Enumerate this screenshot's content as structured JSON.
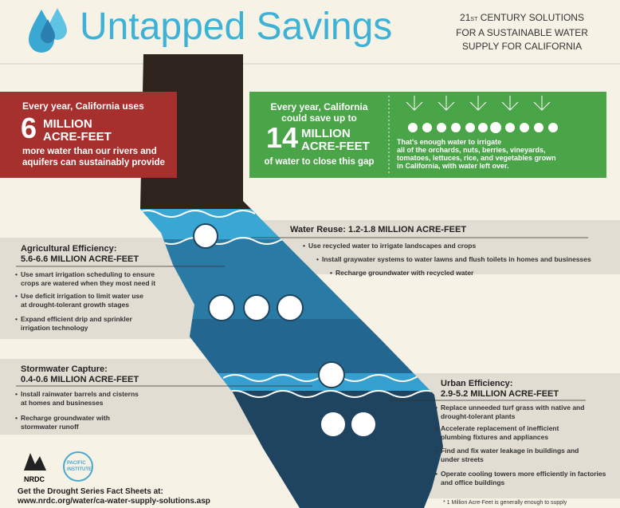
{
  "header": {
    "title": "Untapped Savings",
    "subtitle": {
      "number": "21",
      "suffix": "ST",
      "line1": "CENTURY SOLUTIONS",
      "line2": "FOR A SUSTAINABLE WATER",
      "line3": "SUPPLY FOR CALIFORNIA"
    }
  },
  "gap": {
    "intro": "Every year, California uses",
    "number": "6",
    "unit1": "MILLION",
    "unit2": "ACRE-FEET",
    "lines": [
      "more water than our rivers and",
      "aquifers can sustainably provide"
    ]
  },
  "savings": {
    "intro": [
      "Every year, California",
      "could save up to"
    ],
    "number": "14",
    "unit1": "MILLION",
    "unit2": "ACRE-FEET",
    "outro": "of water to close this gap",
    "note": [
      "That's enough water to irrigate",
      "all of the orchards, nuts, berries, vineyards,",
      "tomatoes, lettuces, rice, and vegetables grown",
      "in California, with water left over."
    ]
  },
  "water_reuse": {
    "title": "Water Reuse: 1.2-1.8 MILLION ACRE-FEET",
    "items": [
      "Use recycled water to irrigate landscapes and crops",
      "Install graywater systems to water lawns and flush toilets in homes and businesses",
      "Recharge groundwater with recycled water"
    ]
  },
  "agricultural": {
    "title": "Agricultural Efficiency:",
    "amount": "5.6-6.6 MILLION ACRE-FEET",
    "items": [
      [
        "Use smart irrigation scheduling to ensure",
        "crops are watered when they most need it"
      ],
      [
        "Use deficit irrigation to limit water use",
        "at drought-tolerant growth stages"
      ],
      [
        "Expand efficient drip and sprinkler",
        "irrigation technology"
      ]
    ]
  },
  "stormwater": {
    "title": "Stormwater Capture:",
    "amount": "0.4-0.6 MILLION ACRE-FEET",
    "items": [
      [
        "Install rainwater barrels and cisterns",
        "at homes and businesses"
      ],
      [
        "Recharge groundwater with",
        "stormwater runoff"
      ]
    ]
  },
  "urban": {
    "title": "Urban Efficiency:",
    "amount": "2.9-5.2 MILLION ACRE-FEET",
    "items": [
      [
        "Replace unneeded turf grass with native and",
        "drought-tolerant plants"
      ],
      [
        "Accelerate replacement of inefficient",
        "plumbing fixtures and appliances"
      ],
      [
        "Find and fix water leakage in buildings and",
        "under streets"
      ],
      [
        "Operate cooling towers more efficiently in factories",
        "and office buildings"
      ]
    ]
  },
  "footer": {
    "logo1": "NRDC",
    "logo2": [
      "PACIFIC",
      "INSTITUTE"
    ],
    "cta": "Get the Drought Series Fact Sheets at:",
    "url": "www.nrdc.org/water/ca-water-supply-solutions.asp",
    "footnote": "* 1 Million Acre-Feet is generally enough to supply"
  }
}
